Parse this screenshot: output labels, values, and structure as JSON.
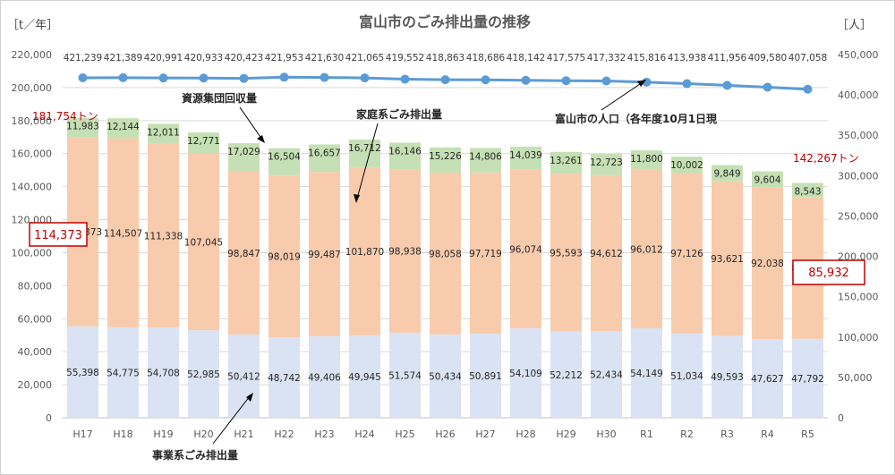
{
  "chart_data": {
    "type": "bar",
    "title": "富山市のごみ排出量の推移",
    "left_unit_label": "［t／年］",
    "right_unit_label": "［人］",
    "categories": [
      "H17",
      "H18",
      "H19",
      "H20",
      "H21",
      "H22",
      "H23",
      "H24",
      "H25",
      "H26",
      "H27",
      "H28",
      "H29",
      "H30",
      "R1",
      "R2",
      "R3",
      "R4",
      "R5"
    ],
    "ylim": [
      0,
      220000
    ],
    "y_ticks": [
      "0",
      "20,000",
      "40,000",
      "60,000",
      "80,000",
      "100,000",
      "120,000",
      "140,000",
      "160,000",
      "180,000",
      "200,000",
      "220,000"
    ],
    "y2lim": [
      0,
      450000
    ],
    "y2_ticks": [
      "0",
      "50,000",
      "100,000",
      "150,000",
      "200,000",
      "250,000",
      "300,000",
      "350,000",
      "400,000",
      "450,000"
    ],
    "series": [
      {
        "name": "事業系ごみ排出量",
        "color": "#dae3f3",
        "values": [
          55398,
          54775,
          54708,
          52985,
          50412,
          48742,
          49406,
          49945,
          51574,
          50434,
          50891,
          54109,
          52212,
          52434,
          54149,
          51034,
          49593,
          47627,
          47792
        ],
        "labels": [
          "55,398",
          "54,775",
          "54,708",
          "52,985",
          "50,412",
          "48,742",
          "49,406",
          "49,945",
          "51,574",
          "50,434",
          "50,891",
          "54,109",
          "52,212",
          "52,434",
          "54,149",
          "51,034",
          "49,593",
          "47,627",
          "47,792"
        ]
      },
      {
        "name": "家庭系ごみ排出量",
        "color": "#f8cbad",
        "values": [
          114373,
          114507,
          111338,
          107045,
          98847,
          98019,
          99487,
          101870,
          98938,
          98058,
          97719,
          96074,
          95593,
          94612,
          96012,
          97126,
          93621,
          92038,
          85932
        ],
        "labels": [
          "114,373",
          "114,507",
          "111,338",
          "107,045",
          "98,847",
          "98,019",
          "99,487",
          "101,870",
          "98,938",
          "98,058",
          "97,719",
          "96,074",
          "95,593",
          "94,612",
          "96,012",
          "97,126",
          "93,621",
          "92,038",
          "85,932"
        ]
      },
      {
        "name": "資源集団回収量",
        "color": "#c5e0b4",
        "values": [
          11983,
          12144,
          12011,
          12771,
          17029,
          16504,
          16657,
          16712,
          16146,
          15226,
          14806,
          14039,
          13261,
          12723,
          11800,
          10002,
          9849,
          9604,
          8543
        ],
        "labels": [
          "11,983",
          "12,144",
          "12,011",
          "12,771",
          "17,029",
          "16,504",
          "16,657",
          "16,712",
          "16,146",
          "15,226",
          "14,806",
          "14,039",
          "13,261",
          "12,723",
          "11,800",
          "10,002",
          "9,849",
          "9,604",
          "8,543"
        ]
      }
    ],
    "line_series": {
      "name": "富山市の人口（各年度10月1日現",
      "color": "#5b9bd5",
      "axis": "right",
      "values": [
        421239,
        421389,
        420991,
        420933,
        420423,
        421953,
        421630,
        421065,
        419552,
        418863,
        418686,
        418142,
        417575,
        417332,
        415816,
        413938,
        411956,
        409580,
        407058
      ],
      "labels": [
        "421,239",
        "421,389",
        "420,991",
        "420,933",
        "420,423",
        "421,953",
        "421,630",
        "421,065",
        "419,552",
        "418,863",
        "418,686",
        "418,142",
        "417,575",
        "417,332",
        "415,816",
        "413,938",
        "411,956",
        "409,580",
        "407,058"
      ]
    },
    "annotations": {
      "total_first": "181,754トン",
      "total_last": "142,267トン",
      "household_first": "114,373",
      "household_last": "85,932",
      "label_shigen": "資源集団回収量",
      "label_katei": "家庭系ごみ排出量",
      "label_jigyo": "事業系ごみ排出量",
      "label_population": "富山市の人口（各年度10月1日現"
    },
    "accent_color": "#c00000",
    "grid": true
  }
}
